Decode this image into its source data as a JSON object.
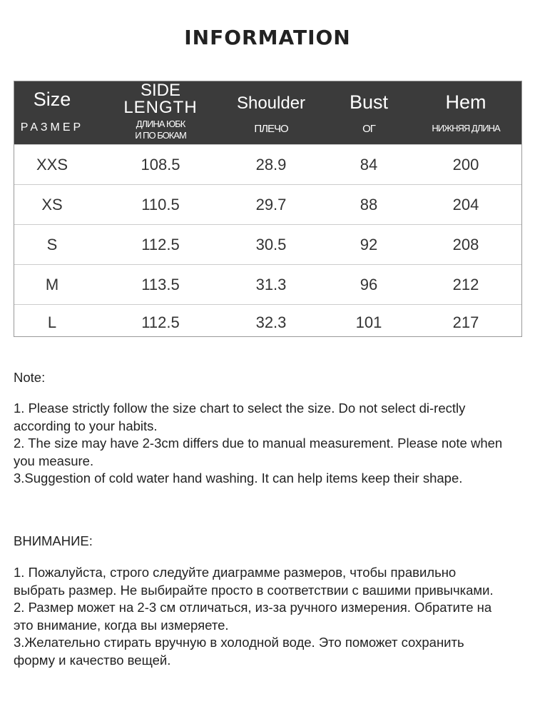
{
  "title": "INFORMATION",
  "table": {
    "headers": [
      {
        "en": "Size",
        "ru": "РАЗМЕР"
      },
      {
        "en": "SIDE LENGTH",
        "en_line1": "SIDE",
        "en_line2": "LENGTH",
        "ru_line1": "ДЛИНА ЮБК",
        "ru_line2": "И ПО БОКАМ"
      },
      {
        "en": "Shoulder",
        "ru": "ПЛЕЧО"
      },
      {
        "en": "Bust",
        "ru": "ОГ"
      },
      {
        "en": "Hem",
        "ru": "НИЖНЯЯ ДЛИНА"
      }
    ],
    "rows": [
      [
        "XXS",
        "108.5",
        "28.9",
        "84",
        "200"
      ],
      [
        "XS",
        "110.5",
        "29.7",
        "88",
        "204"
      ],
      [
        "S",
        "112.5",
        "30.5",
        "92",
        "208"
      ],
      [
        "M",
        "113.5",
        "31.3",
        "96",
        "212"
      ],
      [
        "L",
        "112.5",
        "32.3",
        "101",
        "217"
      ]
    ]
  },
  "note_en": {
    "heading": "Note:",
    "items": [
      "1. Please strictly follow the size chart  to select the size. Do not select di-rectly according to your habits.",
      "2. The size may have 2-3cm differs due to manual measurement. Please note when you measure.",
      "3.Suggestion of cold water hand washing. It can help items keep their shape."
    ]
  },
  "note_ru": {
    "heading": "ВНИМАНИЕ:",
    "items": [
      "1. Пожалуйста, строго следуйте диаграмме размеров, чтобы правильно выбрать размер. Не выбирайте просто в соответствии с вашими привычками.",
      "2. Размер может на 2-3 см отличаться, из-за ручного измерения. Обратите на это внимание, когда вы измеряете.",
      "3.Желательно стирать вручную в холодной воде. Это поможет сохранить форму и качество вещей."
    ]
  }
}
